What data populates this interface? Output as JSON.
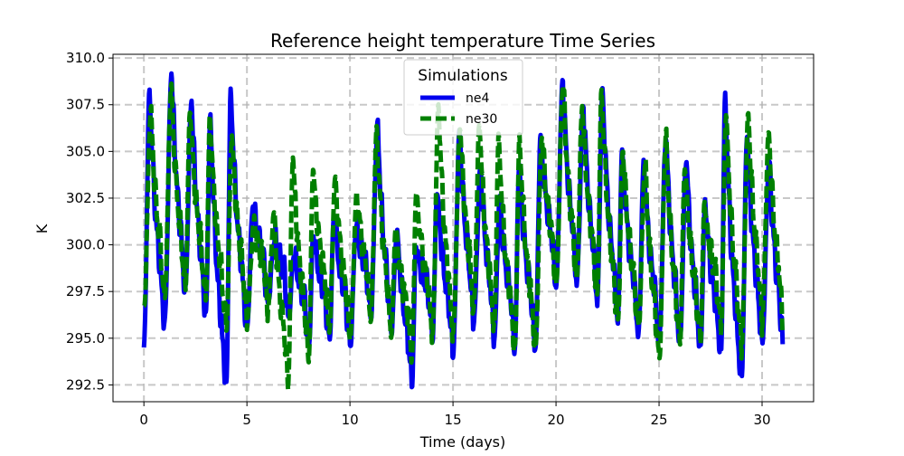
{
  "chart_data": {
    "type": "line",
    "title": "Reference height temperature Time Series",
    "xlabel": "Time (days)",
    "ylabel": "K",
    "xlim": [
      -1.5,
      32.5
    ],
    "ylim": [
      291.6,
      310.2
    ],
    "x_ticks": [
      0,
      5,
      10,
      15,
      20,
      25,
      30
    ],
    "x_tick_labels": [
      "0",
      "5",
      "10",
      "15",
      "20",
      "25",
      "30"
    ],
    "y_ticks": [
      292.5,
      295.0,
      297.5,
      300.0,
      302.5,
      305.0,
      307.5,
      310.0
    ],
    "y_tick_labels": [
      "292.5",
      "295.0",
      "297.5",
      "300.0",
      "302.5",
      "305.0",
      "307.5",
      "310.0"
    ],
    "grid": true,
    "legend": {
      "title": "Simulations",
      "placement": "upper-center",
      "entries": [
        "ne4",
        "ne30"
      ]
    },
    "x_range_days": [
      0,
      31
    ],
    "series": [
      {
        "name": "ne4",
        "color": "#0000ee",
        "style": "solid",
        "daily_max": [
          308.2,
          309.3,
          307.8,
          306.8,
          308.2,
          302.1,
          300.3,
          299.5,
          300.5,
          301.5,
          301.0,
          306.4,
          300.8,
          300.0,
          303.0,
          306.1,
          304.2,
          302.5,
          304.4,
          305.8,
          308.8,
          307.5,
          308.3,
          305.1,
          304.4,
          305.8,
          304.6,
          302.3,
          307.9,
          306.0,
          304.5
        ],
        "daily_min": [
          294.5,
          295.8,
          297.5,
          296.2,
          292.5,
          295.5,
          296.8,
          296.0,
          294.4,
          294.7,
          294.5,
          296.0,
          295.3,
          292.5,
          295.0,
          294.2,
          295.9,
          295.0,
          294.5,
          294.5,
          297.8,
          298.0,
          297.0,
          296.0,
          295.2,
          294.8,
          294.7,
          294.3,
          294.0,
          292.8,
          294.7
        ]
      },
      {
        "name": "ne30",
        "color": "#008000",
        "style": "dashed",
        "daily_max": [
          307.2,
          308.5,
          307.3,
          306.9,
          305.9,
          301.2,
          301.7,
          304.8,
          304.2,
          303.6,
          302.8,
          306.2,
          301.0,
          302.9,
          307.5,
          306.4,
          306.5,
          305.8,
          305.7,
          305.8,
          308.7,
          307.5,
          308.3,
          305.1,
          304.3,
          305.8,
          304.3,
          302.3,
          307.2,
          307.0,
          306.0
        ],
        "daily_min": [
          296.5,
          297.0,
          297.5,
          297.0,
          295.5,
          296.0,
          296.5,
          292.7,
          294.0,
          295.5,
          295.0,
          296.0,
          295.2,
          294.0,
          295.2,
          295.2,
          296.5,
          295.5,
          294.4,
          294.5,
          297.8,
          298.0,
          297.2,
          295.8,
          295.5,
          293.8,
          294.6,
          294.7,
          295.5,
          294.6,
          296.0
        ]
      }
    ]
  }
}
